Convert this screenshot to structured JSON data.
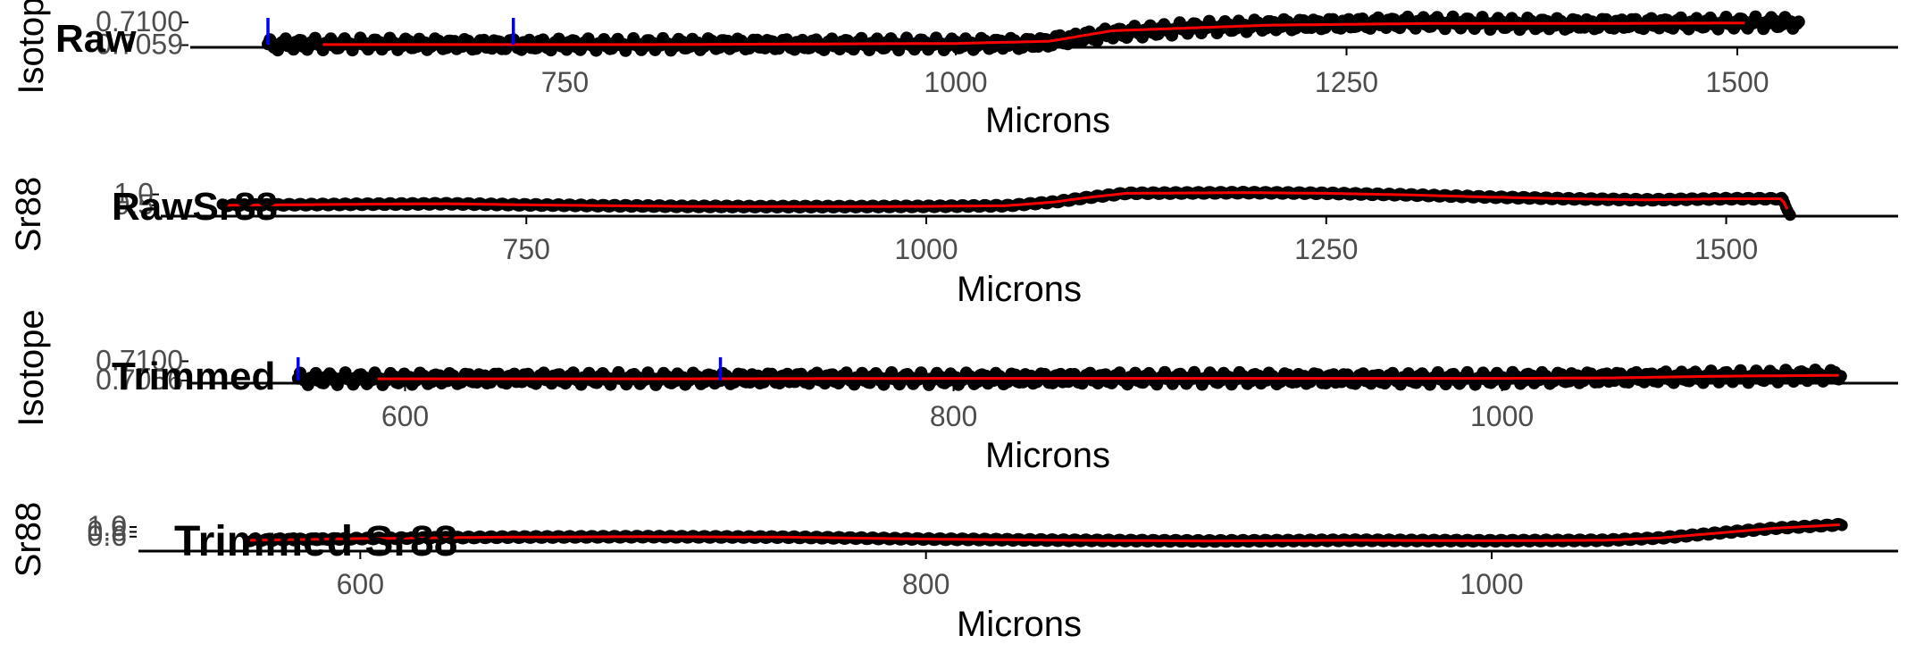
{
  "colors": {
    "points": "#000000",
    "trend": "#ff0000",
    "marker": "#0000ff",
    "axis": "#000000",
    "tick_text": "#4d4d4d"
  },
  "chart_data": [
    {
      "type": "scatter",
      "title": "Raw",
      "xlabel": "Microns",
      "ylabel": "Isotope",
      "xlim": [
        560,
        1560
      ],
      "ylim": [
        0.7055,
        0.7105
      ],
      "x_ticks": [
        750,
        1000,
        1250,
        1500
      ],
      "y_ticks": [
        0.7059,
        0.71
      ],
      "y_tick_labels": [
        "0.7059",
        "0.7100"
      ],
      "grid": false,
      "vertical_markers": [
        560,
        717
      ],
      "series": [
        {
          "x": [
            560,
            600,
            650,
            700,
            750,
            800,
            850,
            900,
            950,
            1000,
            1050,
            1100,
            1150,
            1200,
            1250,
            1300,
            1350,
            1400,
            1450,
            1500,
            1540
          ],
          "y": [
            0.706,
            0.7061,
            0.7061,
            0.706,
            0.706,
            0.706,
            0.7061,
            0.706,
            0.7061,
            0.7061,
            0.7062,
            0.708,
            0.709,
            0.7095,
            0.7098,
            0.71,
            0.7098,
            0.7097,
            0.7098,
            0.7099,
            0.71
          ]
        }
      ],
      "trend": {
        "x": [
          595,
          700,
          800,
          900,
          1000,
          1060,
          1100,
          1200,
          1300,
          1400,
          1505
        ],
        "y": [
          0.706,
          0.706,
          0.706,
          0.7061,
          0.7062,
          0.7066,
          0.7085,
          0.7095,
          0.7098,
          0.7098,
          0.7099
        ]
      }
    },
    {
      "type": "line",
      "title": "RawSr88",
      "xlabel": "Microns",
      "ylabel": "Sr88",
      "xlim": [
        555,
        1560
      ],
      "ylim": [
        0.0,
        1.15
      ],
      "x_ticks": [
        750,
        1000,
        1250,
        1500
      ],
      "y_ticks": [
        0.5,
        1.0
      ],
      "y_tick_labels": [
        "0.5",
        "1.0"
      ],
      "grid": false,
      "series": [
        {
          "x": [
            560,
            650,
            700,
            750,
            800,
            850,
            900,
            950,
            1000,
            1050,
            1080,
            1100,
            1125,
            1150,
            1200,
            1250,
            1300,
            1350,
            1400,
            1450,
            1500,
            1535,
            1540
          ],
          "y": [
            0.5,
            0.55,
            0.57,
            0.52,
            0.48,
            0.45,
            0.44,
            0.44,
            0.45,
            0.48,
            0.65,
            0.85,
            1.05,
            1.06,
            1.08,
            1.05,
            0.98,
            0.88,
            0.8,
            0.75,
            0.8,
            0.8,
            0.05
          ]
        }
      ]
    },
    {
      "type": "scatter",
      "title": "Trimmed",
      "xlabel": "Microns",
      "ylabel": "Isotope",
      "xlim": [
        550,
        1120
      ],
      "ylim": [
        0.705,
        0.7105
      ],
      "x_ticks": [
        600,
        800,
        1000
      ],
      "y_ticks": [
        0.7056,
        0.71
      ],
      "y_tick_labels": [
        "0.7056",
        "0.7100"
      ],
      "grid": false,
      "vertical_markers": [
        561,
        715
      ],
      "series": [
        {
          "x": [
            561,
            600,
            650,
            700,
            750,
            800,
            850,
            900,
            950,
            1000,
            1050,
            1100,
            1124
          ],
          "y": [
            0.706,
            0.706,
            0.7061,
            0.706,
            0.7061,
            0.706,
            0.7061,
            0.7061,
            0.706,
            0.7061,
            0.7063,
            0.7066,
            0.7068
          ]
        }
      ],
      "trend": {
        "x": [
          590,
          700,
          800,
          900,
          1000,
          1040,
          1080,
          1124
        ],
        "y": [
          0.706,
          0.706,
          0.7061,
          0.7061,
          0.7061,
          0.7062,
          0.7066,
          0.7068
        ]
      }
    },
    {
      "type": "line",
      "title": "Trimmed Sr88",
      "xlabel": "Microns",
      "ylabel": "Sr88",
      "xlim": [
        520,
        1120
      ],
      "ylim": [
        0.0,
        1.15
      ],
      "x_ticks": [
        600,
        800,
        1000
      ],
      "y_ticks": [
        0.6,
        0.8,
        1.0
      ],
      "y_tick_labels": [
        "0.6",
        "0.8",
        "1.0"
      ],
      "grid": false,
      "series": [
        {
          "x": [
            561,
            600,
            650,
            700,
            750,
            800,
            850,
            900,
            950,
            1000,
            1040,
            1060,
            1080,
            1100,
            1124
          ],
          "y": [
            0.45,
            0.52,
            0.58,
            0.6,
            0.58,
            0.5,
            0.45,
            0.42,
            0.45,
            0.43,
            0.45,
            0.55,
            0.75,
            0.95,
            1.1
          ]
        }
      ]
    }
  ]
}
